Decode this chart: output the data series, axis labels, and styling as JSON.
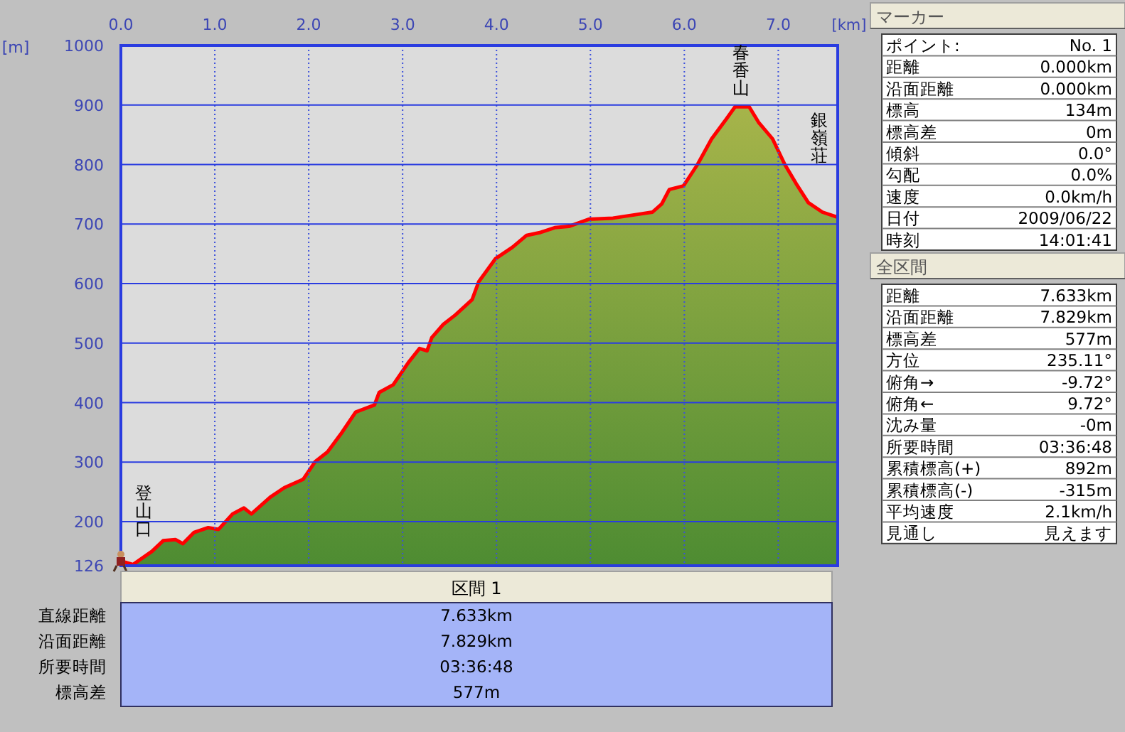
{
  "chart_data": [
    {
      "type": "area",
      "xlabel": "[km]",
      "ylabel": "[m]",
      "xlim": [
        0,
        7.633
      ],
      "ylim": [
        126,
        1000
      ],
      "xticks": [
        {
          "value": 0,
          "label": "0.0"
        },
        {
          "value": 1,
          "label": "1.0"
        },
        {
          "value": 2,
          "label": "2.0"
        },
        {
          "value": 3,
          "label": "3.0"
        },
        {
          "value": 4,
          "label": "4.0"
        },
        {
          "value": 5,
          "label": "5.0"
        },
        {
          "value": 6,
          "label": "6.0"
        },
        {
          "value": 7,
          "label": "7.0"
        }
      ],
      "yticks": [
        126,
        200,
        300,
        400,
        500,
        600,
        700,
        800,
        900,
        1000
      ],
      "grid": true,
      "series": [
        {
          "color": "#ff0000",
          "x": [
            0,
            0.13,
            0.33,
            0.45,
            0.58,
            0.66,
            0.78,
            0.93,
            1.04,
            1.19,
            1.31,
            1.39,
            1.59,
            1.74,
            1.94,
            2.07,
            2.2,
            2.35,
            2.5,
            2.7,
            2.75,
            2.9,
            3.06,
            3.18,
            3.26,
            3.31,
            3.43,
            3.56,
            3.74,
            3.81,
            3.99,
            4.17,
            4.32,
            4.47,
            4.62,
            4.77,
            4.98,
            5.24,
            5.49,
            5.66,
            5.76,
            5.84,
            5.99,
            6.14,
            6.29,
            6.44,
            6.54,
            6.69,
            6.79,
            6.94,
            7.07,
            7.19,
            7.32,
            7.47,
            7.62
          ],
          "values": [
            134,
            128,
            150,
            168,
            170,
            163,
            182,
            190,
            187,
            213,
            223,
            213,
            241,
            257,
            271,
            301,
            317,
            349,
            384,
            396,
            417,
            430,
            467,
            491,
            487,
            509,
            531,
            547,
            573,
            603,
            642,
            661,
            681,
            686,
            694,
            696,
            708,
            710,
            716,
            720,
            734,
            758,
            764,
            800,
            843,
            875,
            897,
            897,
            871,
            843,
            800,
            768,
            736,
            720,
            712
          ]
        }
      ],
      "annotations": [
        {
          "text": "春香山",
          "x": 6.6,
          "y": 900
        },
        {
          "text": "銀嶺荘",
          "x": 7.47,
          "y": 720
        },
        {
          "text": "登山口",
          "x": 0,
          "y": 126
        }
      ]
    },
    {
      "type": "other",
      "title": "マーカー",
      "annotations": [
        "ポイント:",
        "No. 1",
        "距離",
        "0.000km",
        "沿面距離",
        "0.000km",
        "標高",
        "134m",
        "標高差",
        "0m",
        "傾斜",
        "0.0°",
        "勾配",
        "0.0%",
        "速度",
        "0.0km/h",
        "日付",
        "2009/06/22",
        "時刻",
        "14:01:41"
      ]
    },
    {
      "type": "other",
      "title": "全区間",
      "annotations": [
        "距離",
        "7.633km",
        "沿面距離",
        "7.829km",
        "標高差",
        "577m",
        "方位",
        "235.11°",
        "俯角→",
        "-9.72°",
        "俯角←",
        "9.72°",
        "沈み量",
        "-0m",
        "所要時間",
        "03:36:48",
        "累積標高(+)",
        "892m",
        "累積標高(-)",
        "-315m",
        "平均速度",
        "2.1km/h",
        "見通し",
        "見えます"
      ]
    },
    {
      "type": "other",
      "title": "区間 1",
      "annotations": [
        "直線距離",
        "7.633km",
        "沿面距離",
        "7.829km",
        "所要時間",
        "03:36:48",
        "標高差",
        "577m"
      ]
    }
  ]
}
